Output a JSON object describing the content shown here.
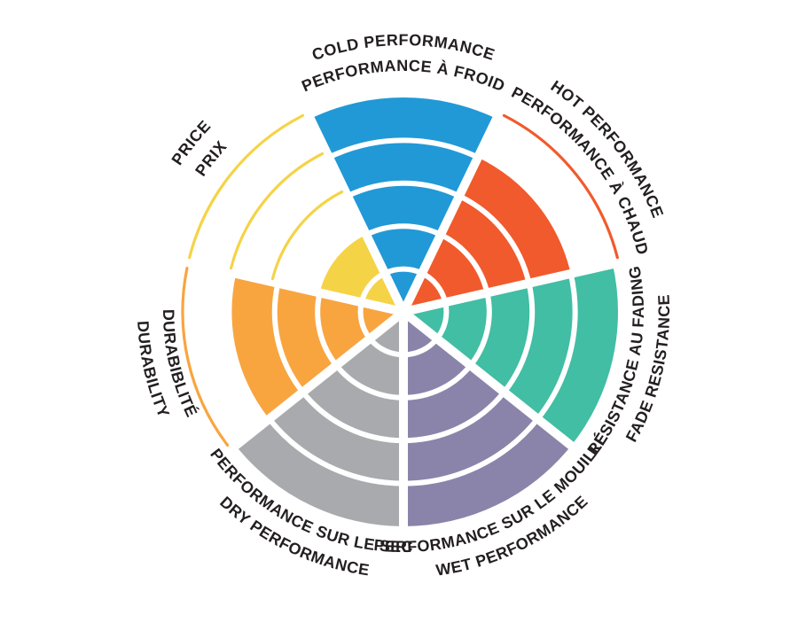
{
  "page": {
    "background": "#FFFFFF",
    "label_color": "#231F20"
  },
  "chart_data": {
    "type": "radial-wheel",
    "description": "Seven-sector circular rating wheel; each sector filled to a level out of 5 concentric rings, unfilled ring boundaries shown as thin colored outline arcs",
    "max_level": 5,
    "rings": 5,
    "legend_position": "curved labels around rim, bilingual (EN/FR)",
    "categories": [
      {
        "id": "cold-performance",
        "label_en": "COLD PERFORMANCE",
        "label_fr": "PERFORMANCE À FROID",
        "value": 5,
        "color": "#2199D6"
      },
      {
        "id": "hot-performance",
        "label_en": "HOT PERFORMANCE",
        "label_fr": "PERFORMANCE À CHAUD",
        "value": 4,
        "color": "#F15A2C"
      },
      {
        "id": "fade-resistance",
        "label_en": "FADE RESISTANCE",
        "label_fr": "RÉSISTANCE AU FADING",
        "value": 5,
        "color": "#41BEA4"
      },
      {
        "id": "wet-performance",
        "label_en": "WET PERFORMANCE",
        "label_fr": "PERFORMANCE SUR LE MOUILLÉ",
        "value": 5,
        "color": "#8A84AA"
      },
      {
        "id": "dry-performance",
        "label_en": "DRY PERFORMANCE",
        "label_fr": "PERFORMANCE SUR LE SEC",
        "value": 5,
        "color": "#A8AAAD"
      },
      {
        "id": "durability",
        "label_en": "DURABILITY",
        "label_fr": "DURABIBLITÉ",
        "value": 4,
        "color": "#F8A540"
      },
      {
        "id": "price",
        "label_en": "PRICE",
        "label_fr": "PRIX",
        "value": 2,
        "color": "#F5D347"
      }
    ]
  }
}
